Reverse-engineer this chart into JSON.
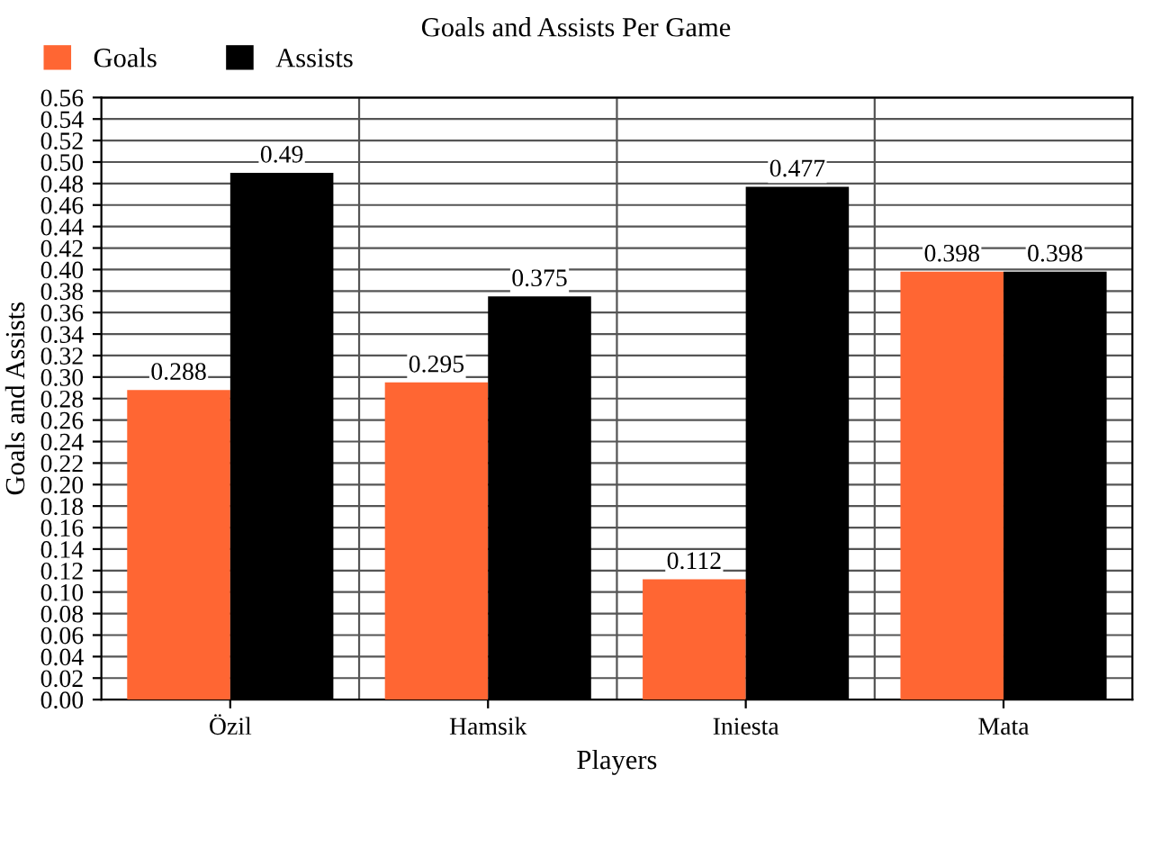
{
  "chart_data": {
    "type": "bar",
    "title": "Goals and Assists Per Game",
    "xlabel": "Players",
    "ylabel": "Goals and Assists",
    "categories": [
      "Özil",
      "Hamsik",
      "Iniesta",
      "Mata"
    ],
    "series": [
      {
        "name": "Goals",
        "color": "#ff6633",
        "values": [
          0.288,
          0.295,
          0.112,
          0.398
        ]
      },
      {
        "name": "Assists",
        "color": "#000000",
        "values": [
          0.49,
          0.375,
          0.477,
          0.398
        ]
      }
    ],
    "ylim": [
      0,
      0.56
    ],
    "yticks": [
      {
        "value": 0,
        "label": "0.00"
      },
      {
        "value": 0.02,
        "label": "0.02"
      },
      {
        "value": 0.04,
        "label": "0.04"
      },
      {
        "value": 0.06,
        "label": "0.06"
      },
      {
        "value": 0.08,
        "label": "0.08"
      },
      {
        "value": 0.1,
        "label": "0.10"
      },
      {
        "value": 0.12,
        "label": "0.12"
      },
      {
        "value": 0.14,
        "label": "0.14"
      },
      {
        "value": 0.16,
        "label": "0.16"
      },
      {
        "value": 0.18,
        "label": "0.18"
      },
      {
        "value": 0.2,
        "label": "0.20"
      },
      {
        "value": 0.22,
        "label": "0.22"
      },
      {
        "value": 0.24,
        "label": "0.24"
      },
      {
        "value": 0.26,
        "label": "0.26"
      },
      {
        "value": 0.28,
        "label": "0.28"
      },
      {
        "value": 0.3,
        "label": "0.30"
      },
      {
        "value": 0.32,
        "label": "0.32"
      },
      {
        "value": 0.34,
        "label": "0.34"
      },
      {
        "value": 0.36,
        "label": "0.36"
      },
      {
        "value": 0.38,
        "label": "0.38"
      },
      {
        "value": 0.4,
        "label": "0.40"
      },
      {
        "value": 0.42,
        "label": "0.42"
      },
      {
        "value": 0.44,
        "label": "0.44"
      },
      {
        "value": 0.46,
        "label": "0.46"
      },
      {
        "value": 0.48,
        "label": "0.48"
      },
      {
        "value": 0.5,
        "label": "0.50"
      },
      {
        "value": 0.52,
        "label": "0.52"
      },
      {
        "value": 0.54,
        "label": "0.54"
      },
      {
        "value": 0.56,
        "label": "0.56"
      }
    ],
    "grid": true,
    "legend": "top left",
    "data_labels": true
  }
}
